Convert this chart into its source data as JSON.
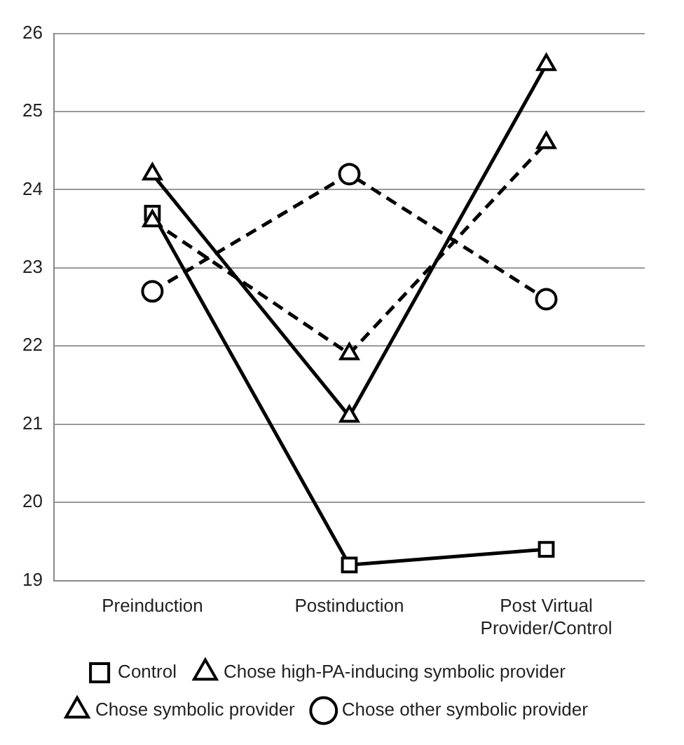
{
  "chart_data": {
    "type": "line",
    "categories": [
      "Preinduction",
      "Postinduction",
      "Post Virtual Provider/Control"
    ],
    "ylim": [
      19,
      26
    ],
    "yticks": [
      19,
      20,
      21,
      22,
      23,
      24,
      25,
      26
    ],
    "grid": "y",
    "legend": "bottom",
    "series": [
      {
        "name": "Control",
        "color": "#000000",
        "values": [
          23.7,
          19.2,
          19.4
        ],
        "marker": "square",
        "line_style": "solid"
      },
      {
        "name": "Chose high-PA-inducing symbolic provider",
        "color": "#000000",
        "values": [
          24.2,
          21.1,
          25.6
        ],
        "marker": "triangle",
        "line_style": "solid"
      },
      {
        "name": "Chose symbolic provider",
        "color": "#000000",
        "values": [
          23.6,
          21.9,
          24.6
        ],
        "marker": "triangle",
        "line_style": "dashed"
      },
      {
        "name": "Chose other symbolic provider",
        "color": "#000000",
        "values": [
          22.7,
          24.2,
          22.6
        ],
        "marker": "circle",
        "line_style": "dashed"
      }
    ]
  }
}
